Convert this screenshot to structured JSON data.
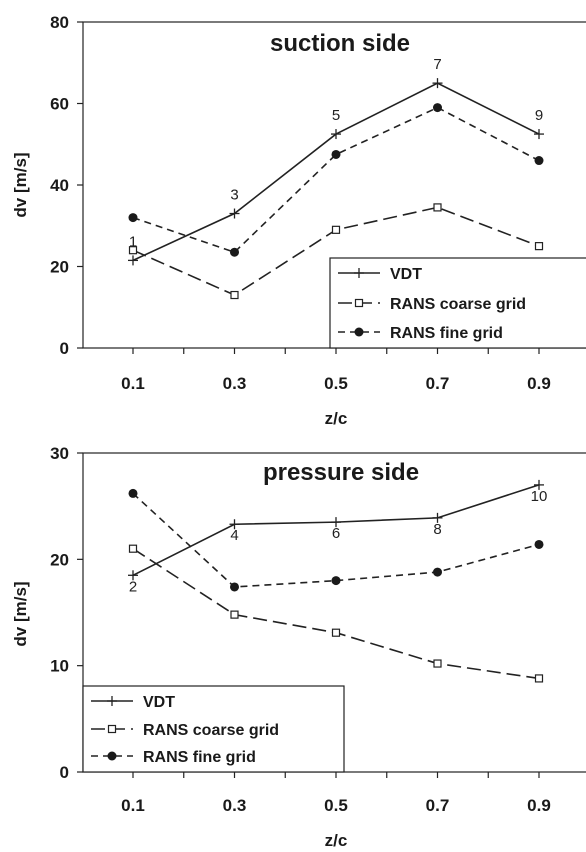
{
  "chart_data": [
    {
      "type": "line",
      "title": "suction side",
      "xlabel": "z/c",
      "ylabel": "dv [m/s]",
      "categories": [
        "0.1",
        "0.3",
        "0.5",
        "0.7",
        "0.9"
      ],
      "x": [
        0.1,
        0.3,
        0.5,
        0.7,
        0.9
      ],
      "ylim": [
        0,
        80
      ],
      "yticks": [
        "0",
        "20",
        "40",
        "60",
        "80"
      ],
      "series": [
        {
          "name": "VDT",
          "values": [
            21.5,
            33,
            52.5,
            65,
            52.5
          ],
          "style": "solid",
          "marker": "plus",
          "color": "#222222"
        },
        {
          "name": "RANS coarse grid",
          "values": [
            24,
            13,
            29,
            34.5,
            25
          ],
          "style": "long-dash",
          "marker": "open-square",
          "color": "#222222"
        },
        {
          "name": "RANS fine grid",
          "values": [
            32,
            23.5,
            47.5,
            59,
            46
          ],
          "style": "short-dash",
          "marker": "filled-circle",
          "color": "#222222"
        }
      ],
      "point_labels": [
        {
          "x": 0.1,
          "text": "1"
        },
        {
          "x": 0.3,
          "text": "3"
        },
        {
          "x": 0.5,
          "text": "5"
        },
        {
          "x": 0.7,
          "text": "7"
        },
        {
          "x": 0.9,
          "text": "9"
        }
      ],
      "grid": false,
      "legend_position": "bottom-right"
    },
    {
      "type": "line",
      "title": "pressure side",
      "xlabel": "z/c",
      "ylabel": "dv [m/s]",
      "categories": [
        "0.1",
        "0.3",
        "0.5",
        "0.7",
        "0.9"
      ],
      "x": [
        0.1,
        0.3,
        0.5,
        0.7,
        0.9
      ],
      "ylim": [
        0,
        30
      ],
      "yticks": [
        "0",
        "10",
        "20",
        "30"
      ],
      "series": [
        {
          "name": "VDT",
          "values": [
            18.5,
            23.3,
            23.5,
            23.9,
            27
          ],
          "style": "solid",
          "marker": "plus",
          "color": "#222222"
        },
        {
          "name": "RANS coarse grid",
          "values": [
            21,
            14.8,
            13.1,
            10.2,
            8.8
          ],
          "style": "long-dash",
          "marker": "open-square",
          "color": "#222222"
        },
        {
          "name": "RANS fine grid",
          "values": [
            26.2,
            17.4,
            18,
            18.8,
            21.4
          ],
          "style": "short-dash",
          "marker": "filled-circle",
          "color": "#222222"
        }
      ],
      "point_labels": [
        {
          "x": 0.1,
          "text": "2"
        },
        {
          "x": 0.3,
          "text": "4"
        },
        {
          "x": 0.5,
          "text": "6"
        },
        {
          "x": 0.7,
          "text": "8"
        },
        {
          "x": 0.9,
          "text": "10"
        }
      ],
      "grid": false,
      "legend_position": "bottom-left"
    }
  ]
}
